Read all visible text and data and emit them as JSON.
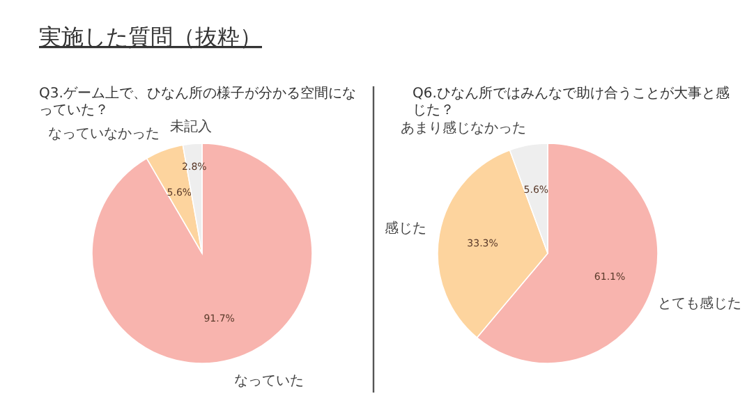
{
  "chart_data": [
    {
      "type": "pie",
      "title": "Q3.ゲーム上で、ひなん所の様子が分かる空間になっていた？",
      "annotations": [
        "実施した質問（抜粋）"
      ],
      "categories": [
        "なっていた",
        "なっていなかった",
        "未記入"
      ],
      "values": [
        91.7,
        5.6,
        2.8
      ],
      "colors": [
        "#f8b4ae",
        "#fdd49e",
        "#eeeeee"
      ],
      "value_labels": [
        "91.7%",
        "5.6%",
        "2.8%"
      ]
    },
    {
      "type": "pie",
      "title": "Q6.ひなん所ではみんなで助け合うことが大事と感じた？",
      "categories": [
        "とても感じた",
        "感じた",
        "あまり感じなかった"
      ],
      "values": [
        61.1,
        33.3,
        5.6
      ],
      "colors": [
        "#f8b4ae",
        "#fdd49e",
        "#eeeeee"
      ],
      "value_labels": [
        "61.1%",
        "33.3%",
        "5.6%"
      ]
    }
  ]
}
